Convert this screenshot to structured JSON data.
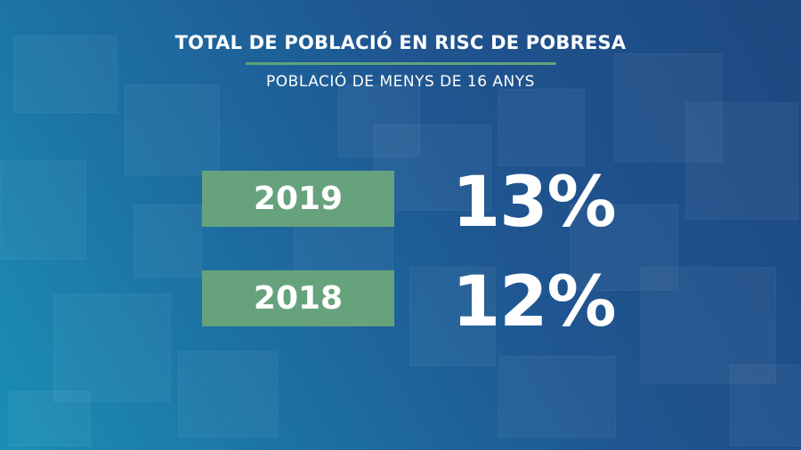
{
  "header": {
    "title": "TOTAL DE POBLACIÓ EN RISC DE POBRESA",
    "subtitle": "POBLACIÓ DE MENYS DE 16 ANYS"
  },
  "accent_color": "#66a37d",
  "rows": [
    {
      "year": "2019",
      "value": "13%"
    },
    {
      "year": "2018",
      "value": "12%"
    }
  ]
}
